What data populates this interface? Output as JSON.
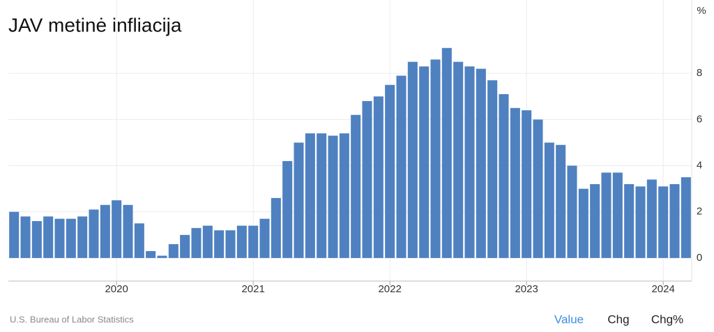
{
  "chart_data": {
    "type": "bar",
    "title": "JAV metinė infliacija",
    "unit": "%",
    "categories": [
      null,
      null,
      null,
      null,
      null,
      null,
      null,
      null,
      null,
      "2020",
      null,
      null,
      null,
      null,
      null,
      null,
      null,
      null,
      null,
      null,
      null,
      "2021",
      null,
      null,
      null,
      null,
      null,
      null,
      null,
      null,
      null,
      null,
      null,
      "2022",
      null,
      null,
      null,
      null,
      null,
      null,
      null,
      null,
      null,
      null,
      null,
      "2023",
      null,
      null,
      null,
      null,
      null,
      null,
      null,
      null,
      null,
      null,
      null,
      "2024",
      null,
      null
    ],
    "values": [
      2.0,
      1.8,
      1.6,
      1.8,
      1.7,
      1.7,
      1.8,
      2.1,
      2.3,
      2.5,
      2.3,
      1.5,
      0.3,
      0.1,
      0.6,
      1.0,
      1.3,
      1.4,
      1.2,
      1.2,
      1.4,
      1.4,
      1.7,
      2.6,
      4.2,
      5.0,
      5.4,
      5.4,
      5.3,
      5.4,
      6.2,
      6.8,
      7.0,
      7.5,
      7.9,
      8.5,
      8.3,
      8.6,
      9.1,
      8.5,
      8.3,
      8.2,
      7.7,
      7.1,
      6.5,
      6.4,
      6.0,
      5.0,
      4.9,
      4.0,
      3.0,
      3.2,
      3.7,
      3.7,
      3.2,
      3.1,
      3.4,
      3.1,
      3.2,
      3.5
    ],
    "color": "#4f81c0",
    "ylim": [
      -1,
      10
    ],
    "yticks": [
      0,
      2,
      4,
      6,
      8
    ],
    "grid": true,
    "source": "U.S. Bureau of Labor Statistics",
    "buttons": [
      "Value",
      "Chg",
      "Chg%"
    ]
  }
}
